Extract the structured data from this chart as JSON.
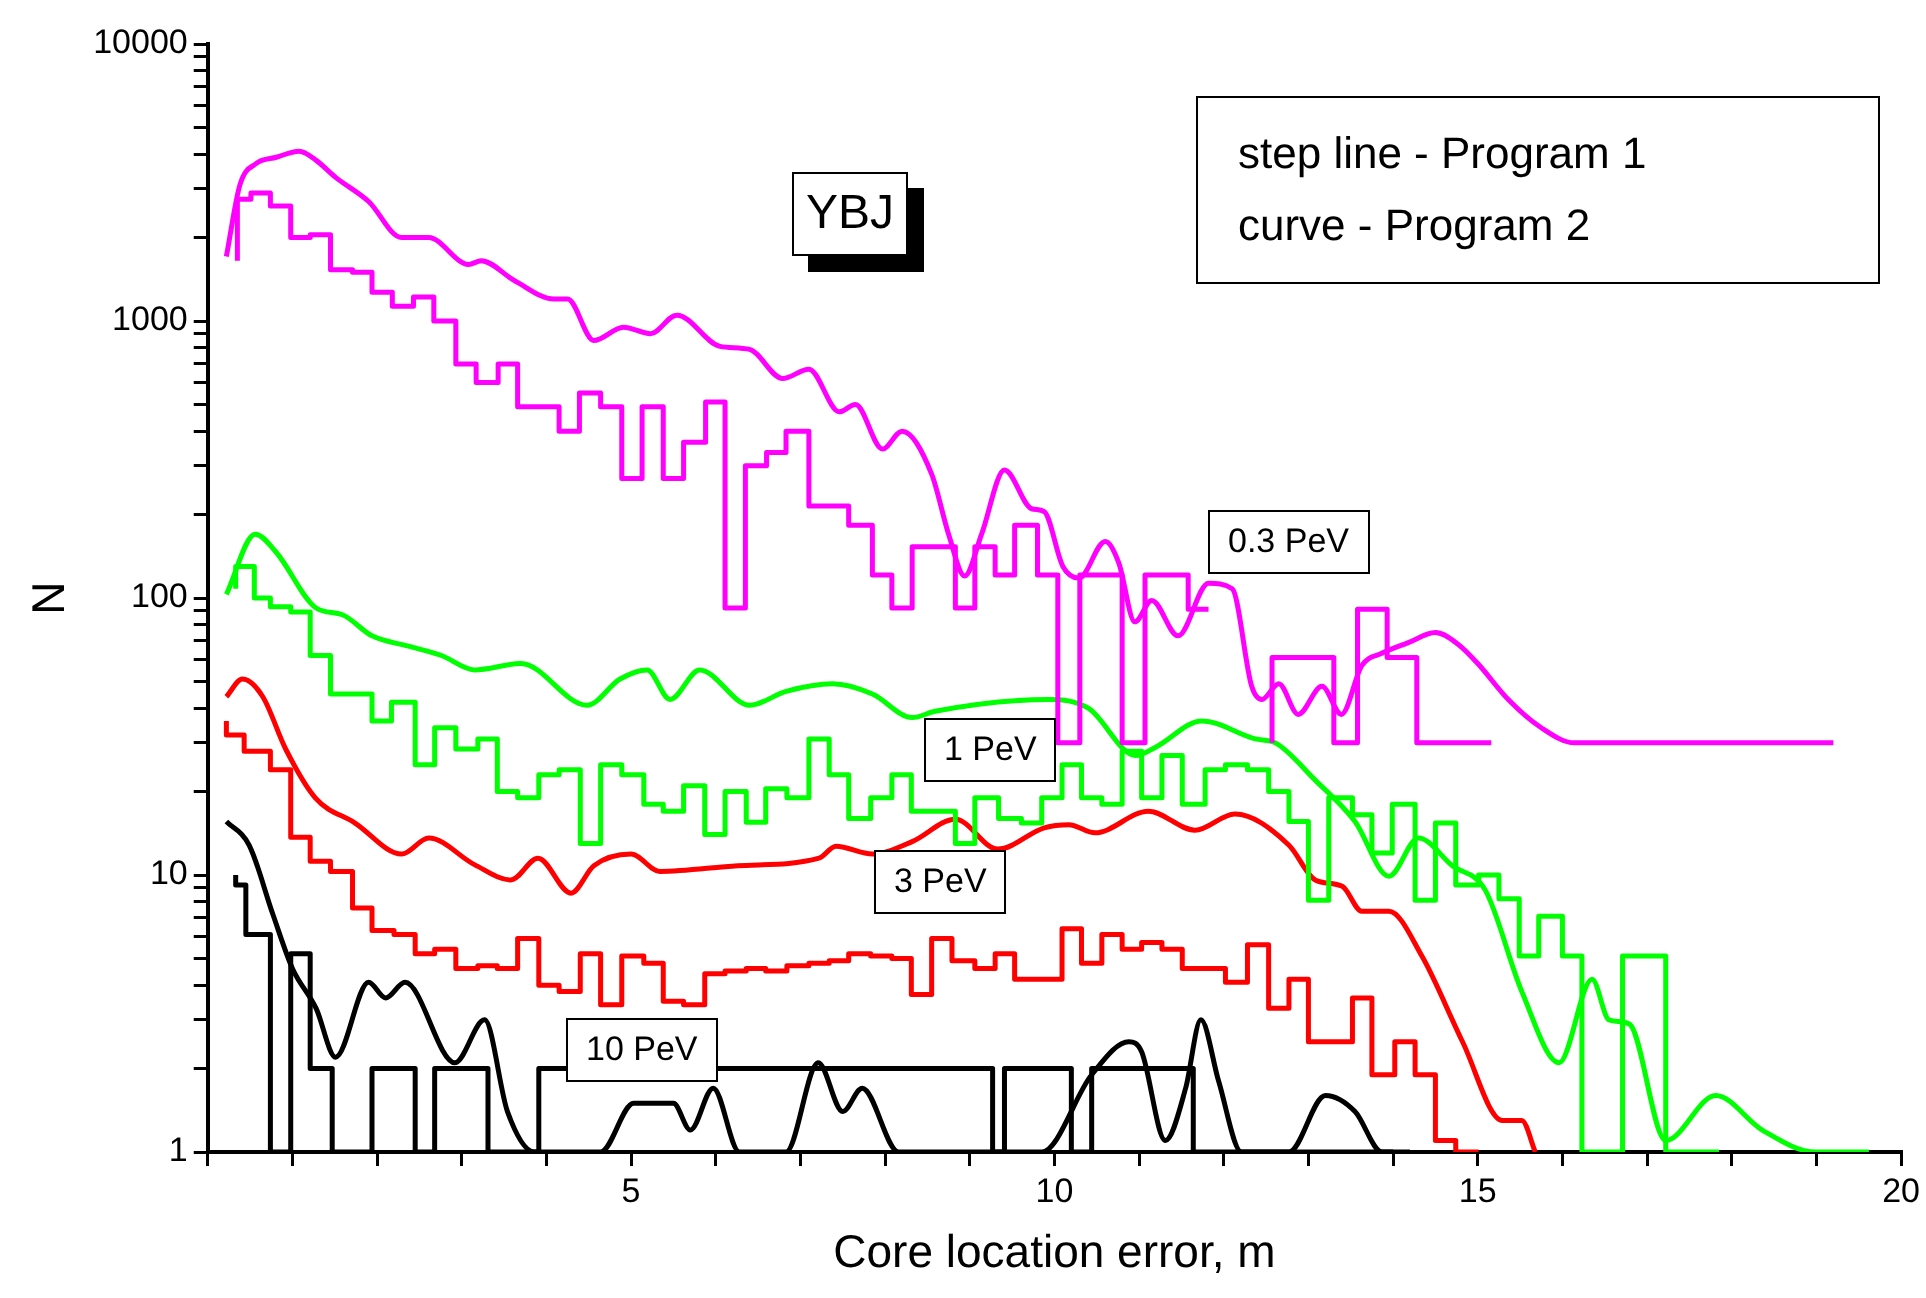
{
  "chart_data": {
    "type": "line",
    "xlabel": "Core location error, m",
    "ylabel": "N",
    "log": "y",
    "marker": "none",
    "xlim": [
      0,
      20
    ],
    "ylim": [
      1,
      10000
    ],
    "xticks": [
      {
        "value": 0,
        "label": null
      },
      {
        "value": 1,
        "label": null
      },
      {
        "value": 2,
        "label": null
      },
      {
        "value": 3,
        "label": null
      },
      {
        "value": 4,
        "label": null
      },
      5,
      {
        "value": 6,
        "label": null
      },
      {
        "value": 7,
        "label": null
      },
      {
        "value": 8,
        "label": null
      },
      {
        "value": 9,
        "label": null
      },
      10,
      {
        "value": 11,
        "label": null
      },
      {
        "value": 12,
        "label": null
      },
      {
        "value": 13,
        "label": null
      },
      {
        "value": 14,
        "label": null
      },
      15,
      {
        "value": 16,
        "label": null
      },
      {
        "value": 17,
        "label": null
      },
      {
        "value": 18,
        "label": null
      },
      {
        "value": 19,
        "label": null
      },
      20
    ],
    "yticks": [
      1,
      {
        "value": 2,
        "label": null
      },
      {
        "value": 3,
        "label": null
      },
      {
        "value": 4,
        "label": null
      },
      {
        "value": 5,
        "label": null
      },
      {
        "value": 6,
        "label": null
      },
      {
        "value": 7,
        "label": null
      },
      {
        "value": 8,
        "label": null
      },
      {
        "value": 9,
        "label": null
      },
      10,
      {
        "value": 20,
        "label": null
      },
      {
        "value": 30,
        "label": null
      },
      {
        "value": 40,
        "label": null
      },
      {
        "value": 50,
        "label": null
      },
      {
        "value": 60,
        "label": null
      },
      {
        "value": 70,
        "label": null
      },
      {
        "value": 80,
        "label": null
      },
      {
        "value": 90,
        "label": null
      },
      100,
      {
        "value": 200,
        "label": null
      },
      {
        "value": 300,
        "label": null
      },
      {
        "value": 400,
        "label": null
      },
      {
        "value": 500,
        "label": null
      },
      {
        "value": 600,
        "label": null
      },
      {
        "value": 700,
        "label": null
      },
      {
        "value": 800,
        "label": null
      },
      {
        "value": 900,
        "label": null
      },
      1000,
      {
        "value": 2000,
        "label": null
      },
      {
        "value": 3000,
        "label": null
      },
      {
        "value": 4000,
        "label": null
      },
      {
        "value": 5000,
        "label": null
      },
      {
        "value": 6000,
        "label": null
      },
      {
        "value": 7000,
        "label": null
      },
      {
        "value": 8000,
        "label": null
      },
      {
        "value": 9000,
        "label": null
      },
      10000
    ],
    "annotations": [
      "YBJ",
      "step line - Program 1\ncurve - Program 2",
      "0.3 PeV",
      "1 PeV",
      "3 PeV",
      "10 PeV"
    ],
    "series": [
      {
        "type": "step",
        "color": "#ff00ff",
        "x": [
          0.35,
          0.51,
          0.74,
          0.98,
          1.21,
          1.45,
          1.71,
          1.94,
          2.18,
          2.43,
          2.67,
          2.93,
          3.17,
          3.43,
          3.66,
          4.15,
          4.39,
          4.64,
          4.89,
          5.13,
          5.38,
          5.62,
          5.88,
          6.11,
          6.35,
          6.6,
          6.83,
          7.1,
          7.57,
          7.85,
          8.08,
          8.32,
          8.83,
          9.06,
          9.3,
          9.53,
          9.8,
          10.04,
          10.3,
          10.8,
          11.07,
          11.58,
          11.82,
          12.17,
          12.57,
          13.3,
          13.58,
          13.93,
          14.28,
          15.04,
          15.16
        ],
        "values": [
          1650,
          2750,
          2900,
          2600,
          2000,
          2050,
          1530,
          1500,
          1270,
          1130,
          1220,
          1000,
          700,
          600,
          700,
          490,
          400,
          550,
          490,
          270,
          490,
          270,
          365,
          510,
          92,
          300,
          335,
          400,
          215,
          183,
          121,
          92,
          153,
          92,
          153,
          121,
          183,
          121,
          30,
          121,
          30,
          121,
          91,
          null,
          30,
          61,
          30,
          91,
          61,
          30,
          30
        ]
      },
      {
        "type": "line",
        "color": "#ff00ff",
        "x": [
          0.22,
          0.38,
          0.57,
          0.81,
          1.08,
          1.28,
          1.51,
          1.9,
          2.29,
          2.61,
          3.08,
          3.23,
          3.62,
          4.09,
          4.25,
          4.56,
          4.91,
          5.23,
          5.54,
          6.05,
          6.4,
          6.79,
          7.1,
          7.46,
          7.65,
          7.97,
          8.2,
          8.55,
          8.75,
          8.94,
          9.14,
          9.41,
          9.73,
          9.88,
          10.1,
          10.29,
          10.6,
          10.76,
          10.95,
          11.15,
          11.46,
          11.82,
          12.1,
          12.33,
          12.45,
          12.65,
          12.88,
          13.16,
          13.39,
          13.63,
          13.86,
          14.18,
          14.5,
          14.77,
          15.0,
          15.36,
          15.75,
          16.14,
          19.2
        ],
        "values": [
          1710,
          3100,
          3700,
          3900,
          4100,
          3800,
          3300,
          2700,
          2000,
          2000,
          1600,
          1650,
          1400,
          1200,
          1200,
          850,
          950,
          900,
          1050,
          810,
          790,
          620,
          670,
          470,
          500,
          345,
          400,
          280,
          170,
          120,
          170,
          290,
          210,
          205,
          130,
          118,
          160,
          134,
          82,
          98,
          73,
          113,
          108,
          48,
          43,
          49,
          38,
          48,
          38,
          57,
          63,
          69,
          75,
          68,
          58,
          43,
          34,
          30,
          30
        ]
      },
      {
        "type": "step",
        "color": "#00ff00",
        "x": [
          0.33,
          0.55,
          0.74,
          0.98,
          1.21,
          1.45,
          1.94,
          2.17,
          2.45,
          2.68,
          2.93,
          3.19,
          3.42,
          3.66,
          3.91,
          4.15,
          4.4,
          4.64,
          4.89,
          5.15,
          5.38,
          5.62,
          5.87,
          6.11,
          6.36,
          6.59,
          6.84,
          7.1,
          7.34,
          7.57,
          7.83,
          8.08,
          8.31,
          8.55,
          8.83,
          9.06,
          9.34,
          9.61,
          9.85,
          10.09,
          10.32,
          10.56,
          10.8,
          11.03,
          11.27,
          11.51,
          11.78,
          12.02,
          12.28,
          12.53,
          12.77,
          13.0,
          13.24,
          13.52,
          13.75,
          13.99,
          14.26,
          14.5,
          14.74,
          15.01,
          15.25,
          15.49,
          15.72,
          16.0,
          16.23,
          16.71,
          17.22,
          17.85
        ],
        "values": [
          108,
          130,
          100,
          93,
          89,
          62,
          45,
          36,
          42,
          25,
          34,
          28.5,
          31,
          20,
          19,
          23,
          24,
          13,
          25,
          23,
          18,
          17,
          21,
          14,
          20,
          15.5,
          20.5,
          19,
          31,
          23,
          16,
          19,
          23,
          17,
          17,
          13,
          19,
          16,
          15.4,
          19,
          25,
          19,
          18,
          28,
          19,
          27,
          18,
          24,
          25,
          24,
          20,
          15.6,
          8.1,
          19,
          16.5,
          12,
          18,
          8.1,
          15.4,
          9.2,
          10,
          8.2,
          5.1,
          7.1,
          5.1,
          1,
          5.1,
          1
        ]
      },
      {
        "type": "line",
        "color": "#00ff00",
        "x": [
          0.22,
          0.56,
          0.81,
          1.28,
          1.59,
          1.94,
          2.37,
          2.76,
          3.15,
          3.7,
          4.48,
          4.87,
          5.19,
          5.46,
          5.81,
          6.4,
          6.83,
          7.38,
          7.85,
          8.32,
          8.59,
          9.93,
          10.4,
          10.96,
          11.2,
          11.74,
          12.37,
          12.61,
          13.08,
          13.55,
          13.95,
          14.3,
          14.7,
          15.09,
          15.52,
          15.96,
          16.35,
          16.55,
          16.79,
          17.22,
          17.81,
          18.36,
          18.99,
          19.62
        ],
        "values": [
          103,
          170,
          146,
          92,
          87,
          73,
          67,
          62,
          55,
          58,
          41,
          51,
          55,
          43,
          55,
          41,
          46,
          49,
          45,
          37,
          39,
          43,
          40,
          27,
          29,
          36,
          31,
          30,
          22,
          15.6,
          9.9,
          13.6,
          10.8,
          8.8,
          3.8,
          2.1,
          4.2,
          3.0,
          2.9,
          1.1,
          1.6,
          1.2,
          1,
          1
        ]
      },
      {
        "type": "step",
        "color": "#ff0000",
        "x": [
          0.22,
          0.43,
          0.74,
          0.98,
          1.21,
          1.45,
          1.71,
          1.94,
          2.2,
          2.45,
          2.68,
          2.93,
          3.19,
          3.42,
          3.66,
          3.91,
          4.15,
          4.4,
          4.64,
          4.89,
          5.15,
          5.38,
          5.62,
          5.87,
          6.11,
          6.36,
          6.59,
          6.84,
          7.1,
          7.34,
          7.57,
          7.83,
          8.08,
          8.31,
          8.55,
          8.79,
          9.06,
          9.3,
          9.53,
          9.8,
          10.09,
          10.32,
          10.56,
          10.8,
          11.03,
          11.27,
          11.51,
          11.78,
          12.02,
          12.28,
          12.53,
          12.77,
          13.0,
          13.24,
          13.52,
          13.75,
          14.02,
          14.26,
          14.5,
          14.74,
          15.01
        ],
        "values": [
          36,
          32,
          28,
          24,
          13.7,
          11.2,
          10.3,
          7.6,
          6.3,
          6.1,
          5.2,
          5.4,
          4.6,
          4.7,
          4.6,
          5.9,
          4.0,
          3.8,
          5.2,
          3.4,
          5.1,
          4.8,
          3.5,
          3.4,
          4.4,
          4.5,
          4.6,
          4.5,
          4.7,
          4.8,
          4.9,
          5.2,
          5.1,
          5.0,
          3.7,
          5.9,
          4.9,
          4.6,
          5.2,
          4.2,
          4.2,
          6.4,
          4.8,
          6.1,
          5.4,
          5.7,
          5.4,
          4.6,
          4.6,
          4.1,
          5.6,
          3.3,
          4.2,
          2.5,
          2.5,
          3.6,
          1.9,
          2.5,
          1.9,
          1.1,
          1
        ]
      },
      {
        "type": "line",
        "color": "#ff0000",
        "x": [
          0.22,
          0.41,
          0.65,
          0.92,
          1.27,
          1.74,
          2.29,
          2.61,
          3.15,
          3.58,
          3.9,
          4.29,
          4.56,
          5.0,
          5.34,
          6.26,
          7.22,
          7.42,
          7.85,
          8.32,
          8.83,
          9.33,
          9.88,
          10.17,
          10.48,
          11.11,
          11.66,
          12.13,
          12.77,
          13.08,
          13.4,
          13.63,
          13.95,
          14.34,
          14.82,
          15.29,
          15.52,
          15.68
        ],
        "values": [
          44,
          51,
          44,
          28.5,
          19,
          15.4,
          11.9,
          13.6,
          10.9,
          9.6,
          11.5,
          8.6,
          10.8,
          11.9,
          10.3,
          10.8,
          11.5,
          12.7,
          11.9,
          13.2,
          15.9,
          12.4,
          14.8,
          15.2,
          14.2,
          17,
          14.5,
          16.6,
          12.8,
          9.6,
          9.1,
          7.4,
          7.4,
          5.1,
          2.5,
          1.3,
          1.3,
          1
        ]
      },
      {
        "type": "step",
        "color": "#000000",
        "x": [
          0.33,
          0.45,
          0.74,
          0.98,
          1.21,
          1.47,
          1.94,
          2.45,
          2.68,
          3.31,
          3.91,
          9.27,
          9.41,
          10.2,
          10.44,
          11.64,
          11.88,
          14
        ],
        "values": [
          10,
          9.2,
          6.1,
          1,
          5.2,
          2,
          1,
          2,
          1,
          2,
          1,
          2,
          1,
          2,
          1,
          2,
          1,
          1
        ]
      },
      {
        "type": "line",
        "color": "#000000",
        "x": [
          0.22,
          0.49,
          0.77,
          1.0,
          1.28,
          1.51,
          1.9,
          2.1,
          2.33,
          2.92,
          3.27,
          3.54,
          3.86,
          4.64,
          5.03,
          5.5,
          5.7,
          5.97,
          6.28,
          6.83,
          7.21,
          7.5,
          7.73,
          8.16,
          9.85,
          10.44,
          10.88,
          11.03,
          11.31,
          11.55,
          11.73,
          11.94,
          12.21,
          12.77,
          13.2,
          13.55,
          13.87,
          14.2
        ],
        "values": [
          15.6,
          12.8,
          7.2,
          4.6,
          3.3,
          2.2,
          4.1,
          3.6,
          4.1,
          2.1,
          3.0,
          1.4,
          1,
          1,
          1.5,
          1.5,
          1.2,
          1.7,
          1,
          1,
          2.1,
          1.4,
          1.7,
          1,
          1,
          1.9,
          2.5,
          2.3,
          1.1,
          1.7,
          3.0,
          1.8,
          1,
          1,
          1.6,
          1.4,
          1,
          1
        ]
      }
    ]
  }
}
